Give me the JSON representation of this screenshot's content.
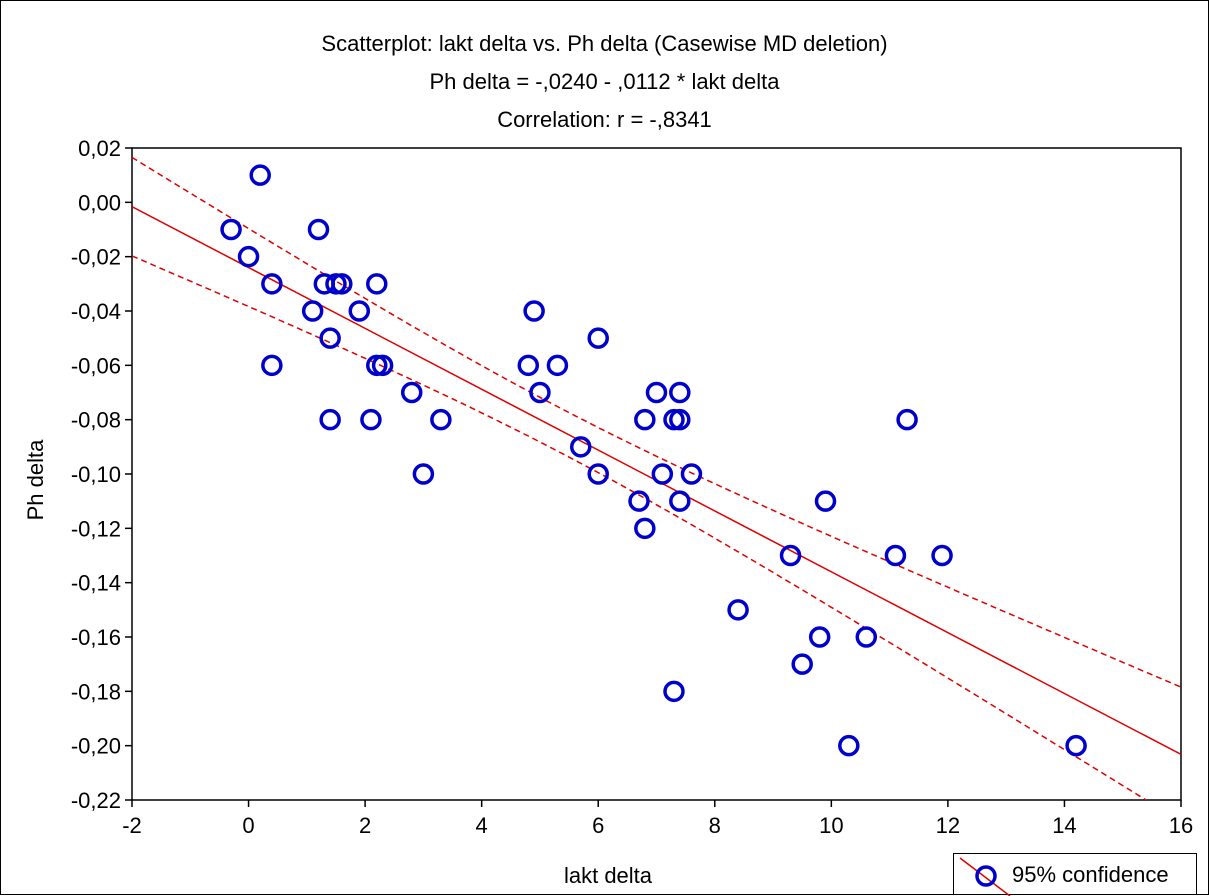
{
  "chart_data": {
    "type": "scatter",
    "title": "Scatterplot: lakt delta vs. Ph delta (Casewise MD deletion)",
    "subtitle": "Ph delta = -,0240 - ,0112  * lakt delta",
    "correlation": "Correlation: r = -,8341",
    "xlabel": "lakt delta",
    "ylabel": "Ph delta",
    "xlim": [
      -2,
      16
    ],
    "ylim": [
      -0.22,
      0.02
    ],
    "x_ticks": [
      "-2",
      "0",
      "2",
      "4",
      "6",
      "8",
      "10",
      "12",
      "14",
      "16"
    ],
    "y_ticks": [
      "0,02",
      "0,00",
      "-0,02",
      "-0,04",
      "-0,06",
      "-0,08",
      "-0,10",
      "-0,12",
      "-0,14",
      "-0,16",
      "-0,18",
      "-0,20",
      "-0,22"
    ],
    "grid": false,
    "legend": {
      "label": "95% confidence",
      "placement": "bottom-right"
    },
    "regression": {
      "intercept": -0.024,
      "slope": -0.0112
    },
    "colors": {
      "points": "#0000cc",
      "fit_line": "#e00000"
    },
    "points": [
      {
        "x": -0.3,
        "y": -0.01
      },
      {
        "x": 0.0,
        "y": -0.02
      },
      {
        "x": 0.2,
        "y": 0.01
      },
      {
        "x": 0.4,
        "y": -0.03
      },
      {
        "x": 0.4,
        "y": -0.06
      },
      {
        "x": 1.1,
        "y": -0.04
      },
      {
        "x": 1.2,
        "y": -0.01
      },
      {
        "x": 1.3,
        "y": -0.03
      },
      {
        "x": 1.4,
        "y": -0.05
      },
      {
        "x": 1.4,
        "y": -0.08
      },
      {
        "x": 1.5,
        "y": -0.03
      },
      {
        "x": 1.6,
        "y": -0.03
      },
      {
        "x": 1.9,
        "y": -0.04
      },
      {
        "x": 2.1,
        "y": -0.08
      },
      {
        "x": 2.2,
        "y": -0.06
      },
      {
        "x": 2.2,
        "y": -0.03
      },
      {
        "x": 2.3,
        "y": -0.06
      },
      {
        "x": 2.8,
        "y": -0.07
      },
      {
        "x": 3.0,
        "y": -0.1
      },
      {
        "x": 3.3,
        "y": -0.08
      },
      {
        "x": 4.8,
        "y": -0.06
      },
      {
        "x": 4.9,
        "y": -0.04
      },
      {
        "x": 5.0,
        "y": -0.07
      },
      {
        "x": 5.3,
        "y": -0.06
      },
      {
        "x": 5.7,
        "y": -0.09
      },
      {
        "x": 6.0,
        "y": -0.05
      },
      {
        "x": 6.0,
        "y": -0.1
      },
      {
        "x": 6.7,
        "y": -0.11
      },
      {
        "x": 6.8,
        "y": -0.12
      },
      {
        "x": 6.8,
        "y": -0.08
      },
      {
        "x": 7.0,
        "y": -0.07
      },
      {
        "x": 7.1,
        "y": -0.1
      },
      {
        "x": 7.3,
        "y": -0.08
      },
      {
        "x": 7.3,
        "y": -0.18
      },
      {
        "x": 7.4,
        "y": -0.07
      },
      {
        "x": 7.4,
        "y": -0.08
      },
      {
        "x": 7.4,
        "y": -0.11
      },
      {
        "x": 7.6,
        "y": -0.1
      },
      {
        "x": 8.4,
        "y": -0.15
      },
      {
        "x": 9.3,
        "y": -0.13
      },
      {
        "x": 9.5,
        "y": -0.17
      },
      {
        "x": 9.8,
        "y": -0.16
      },
      {
        "x": 9.9,
        "y": -0.11
      },
      {
        "x": 10.3,
        "y": -0.2
      },
      {
        "x": 10.6,
        "y": -0.16
      },
      {
        "x": 11.1,
        "y": -0.13
      },
      {
        "x": 11.3,
        "y": -0.08
      },
      {
        "x": 11.9,
        "y": -0.13
      },
      {
        "x": 14.2,
        "y": -0.2
      }
    ]
  }
}
